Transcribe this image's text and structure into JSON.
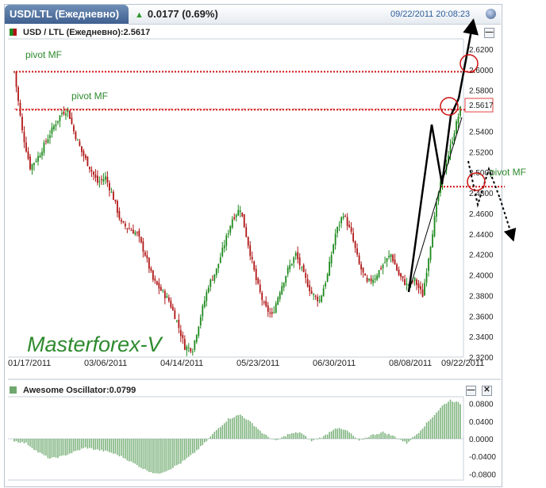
{
  "header": {
    "tab_title": "USD/LTL (Ежедневно)",
    "change": "0.0177 (0.69%)",
    "timestamp": "09/22/2011 20:08:23"
  },
  "price_panel": {
    "title": "USD / LTL (Ежедневно):2.5617",
    "last_price_label": "2.5617",
    "brand": "Masterforex-V",
    "annotations": [
      "pivot MF",
      "pivot MF",
      "pivot MF"
    ]
  },
  "oscillator_panel": {
    "title": "Awesome Oscillator:0.0799"
  },
  "colors": {
    "up": "#1e8a1e",
    "down": "#b01515",
    "accent": "#3f5f8f",
    "pivot": "#cc1111",
    "brand": "#2e8b2e"
  },
  "chart_data": [
    {
      "type": "candlestick",
      "title": "USD / LTL (Ежедневно):2.5617",
      "x_tick_labels": [
        "01/17/2011",
        "03/06/2011",
        "04/14/2011",
        "05/23/2011",
        "06/30/2011",
        "08/08/2011",
        "09/22/2011"
      ],
      "y_tick_labels": [
        "2.6200",
        "2.6000",
        "2.5800",
        "2.5617",
        "2.5400",
        "2.5200",
        "2.5000",
        "2.4800",
        "2.4600",
        "2.4400",
        "2.4200",
        "2.4000",
        "2.3800",
        "2.3600",
        "2.3400",
        "2.3200"
      ],
      "ylim": [
        2.32,
        2.63
      ],
      "last_price": 2.5617,
      "pivot_levels": [
        2.598,
        2.561,
        2.486
      ],
      "close_trace": [
        [
          0,
          2.598
        ],
        [
          4,
          2.54
        ],
        [
          8,
          2.505
        ],
        [
          12,
          2.515
        ],
        [
          16,
          2.53
        ],
        [
          20,
          2.545
        ],
        [
          24,
          2.558
        ],
        [
          27,
          2.561
        ],
        [
          30,
          2.54
        ],
        [
          34,
          2.52
        ],
        [
          38,
          2.505
        ],
        [
          42,
          2.49
        ],
        [
          46,
          2.495
        ],
        [
          50,
          2.475
        ],
        [
          54,
          2.45
        ],
        [
          58,
          2.445
        ],
        [
          62,
          2.44
        ],
        [
          66,
          2.42
        ],
        [
          70,
          2.395
        ],
        [
          74,
          2.385
        ],
        [
          78,
          2.375
        ],
        [
          82,
          2.355
        ],
        [
          86,
          2.33
        ],
        [
          90,
          2.328
        ],
        [
          94,
          2.36
        ],
        [
          98,
          2.39
        ],
        [
          102,
          2.405
        ],
        [
          106,
          2.43
        ],
        [
          110,
          2.455
        ],
        [
          114,
          2.465
        ],
        [
          118,
          2.43
        ],
        [
          122,
          2.395
        ],
        [
          126,
          2.37
        ],
        [
          130,
          2.36
        ],
        [
          134,
          2.385
        ],
        [
          138,
          2.405
        ],
        [
          142,
          2.42
        ],
        [
          146,
          2.4
        ],
        [
          150,
          2.382
        ],
        [
          154,
          2.375
        ],
        [
          158,
          2.4
        ],
        [
          162,
          2.44
        ],
        [
          166,
          2.46
        ],
        [
          170,
          2.44
        ],
        [
          174,
          2.41
        ],
        [
          178,
          2.392
        ],
        [
          182,
          2.398
        ],
        [
          186,
          2.41
        ],
        [
          190,
          2.42
        ],
        [
          194,
          2.4
        ],
        [
          198,
          2.39
        ],
        [
          202,
          2.395
        ],
        [
          206,
          2.38
        ],
        [
          210,
          2.43
        ],
        [
          214,
          2.48
        ],
        [
          218,
          2.51
        ],
        [
          222,
          2.54
        ],
        [
          225,
          2.5617
        ]
      ]
    },
    {
      "type": "bar",
      "title": "Awesome Oscillator:0.0799",
      "y_tick_labels": [
        "0.0800",
        "0.0400",
        "0.0000",
        "-0.0400",
        "-0.0800"
      ],
      "ylim": [
        -0.09,
        0.09
      ],
      "last_value": 0.0799,
      "trace": [
        [
          0,
          -0.005
        ],
        [
          6,
          -0.01
        ],
        [
          12,
          -0.03
        ],
        [
          18,
          -0.045
        ],
        [
          24,
          -0.04
        ],
        [
          30,
          -0.03
        ],
        [
          36,
          -0.02
        ],
        [
          42,
          -0.025
        ],
        [
          48,
          -0.03
        ],
        [
          54,
          -0.04
        ],
        [
          60,
          -0.055
        ],
        [
          66,
          -0.07
        ],
        [
          72,
          -0.08
        ],
        [
          78,
          -0.07
        ],
        [
          84,
          -0.055
        ],
        [
          90,
          -0.035
        ],
        [
          96,
          -0.01
        ],
        [
          102,
          0.02
        ],
        [
          108,
          0.045
        ],
        [
          114,
          0.055
        ],
        [
          120,
          0.035
        ],
        [
          126,
          0.01
        ],
        [
          132,
          -0.005
        ],
        [
          138,
          0.01
        ],
        [
          144,
          0.015
        ],
        [
          150,
          -0.005
        ],
        [
          156,
          0.005
        ],
        [
          162,
          0.025
        ],
        [
          168,
          0.018
        ],
        [
          174,
          -0.005
        ],
        [
          180,
          0.008
        ],
        [
          186,
          0.015
        ],
        [
          192,
          0.005
        ],
        [
          198,
          -0.01
        ],
        [
          204,
          0.015
        ],
        [
          210,
          0.045
        ],
        [
          216,
          0.075
        ],
        [
          220,
          0.088
        ],
        [
          225,
          0.0799
        ]
      ]
    }
  ]
}
